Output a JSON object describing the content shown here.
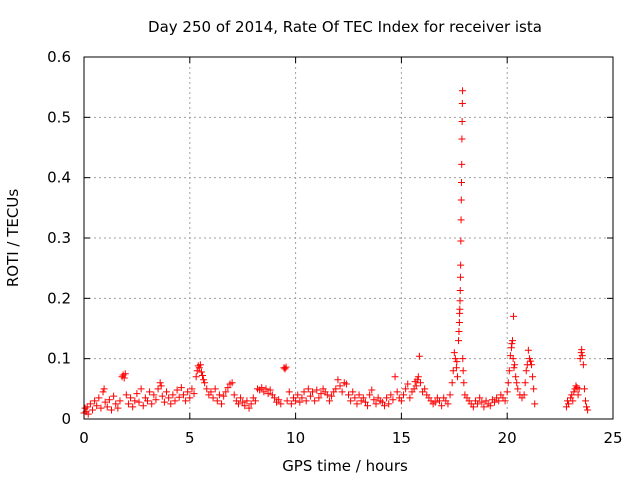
{
  "chart_data": {
    "type": "scatter",
    "title": "Day 250 of 2014, Rate Of TEC Index for receiver ista",
    "xlabel": "GPS time / hours",
    "ylabel": "ROTI / TECUs",
    "xlim": [
      0,
      25
    ],
    "ylim": [
      0,
      0.6
    ],
    "xticks": [
      0,
      5,
      10,
      15,
      20,
      25
    ],
    "yticks": [
      0,
      0.1,
      0.2,
      0.3,
      0.4,
      0.5,
      0.6
    ],
    "xtick_labels": [
      "0",
      "5",
      "10",
      "15",
      "20",
      "25"
    ],
    "ytick_labels": [
      "0",
      "0.1",
      "0.2",
      "0.3",
      "0.4",
      "0.5",
      "0.6"
    ],
    "grid": true,
    "marker": "+",
    "color": "#ff0000",
    "series": [
      {
        "name": "ROTI",
        "points": [
          [
            0.0,
            0.01
          ],
          [
            0.05,
            0.018
          ],
          [
            0.1,
            0.012
          ],
          [
            0.15,
            0.02
          ],
          [
            0.2,
            0.008
          ],
          [
            0.3,
            0.025
          ],
          [
            0.4,
            0.015
          ],
          [
            0.5,
            0.03
          ],
          [
            0.6,
            0.022
          ],
          [
            0.7,
            0.035
          ],
          [
            0.8,
            0.018
          ],
          [
            0.9,
            0.045
          ],
          [
            0.95,
            0.05
          ],
          [
            1.0,
            0.028
          ],
          [
            1.1,
            0.02
          ],
          [
            1.2,
            0.032
          ],
          [
            1.3,
            0.015
          ],
          [
            1.4,
            0.038
          ],
          [
            1.5,
            0.025
          ],
          [
            1.6,
            0.018
          ],
          [
            1.7,
            0.03
          ],
          [
            1.8,
            0.07
          ],
          [
            1.85,
            0.073
          ],
          [
            1.9,
            0.068
          ],
          [
            1.95,
            0.075
          ],
          [
            2.0,
            0.04
          ],
          [
            2.1,
            0.025
          ],
          [
            2.2,
            0.035
          ],
          [
            2.3,
            0.02
          ],
          [
            2.4,
            0.03
          ],
          [
            2.5,
            0.042
          ],
          [
            2.6,
            0.028
          ],
          [
            2.7,
            0.05
          ],
          [
            2.8,
            0.022
          ],
          [
            2.9,
            0.035
          ],
          [
            3.0,
            0.03
          ],
          [
            3.1,
            0.045
          ],
          [
            3.2,
            0.025
          ],
          [
            3.3,
            0.04
          ],
          [
            3.4,
            0.032
          ],
          [
            3.5,
            0.05
          ],
          [
            3.6,
            0.06
          ],
          [
            3.65,
            0.055
          ],
          [
            3.7,
            0.038
          ],
          [
            3.8,
            0.028
          ],
          [
            3.9,
            0.045
          ],
          [
            4.0,
            0.035
          ],
          [
            4.1,
            0.025
          ],
          [
            4.2,
            0.04
          ],
          [
            4.3,
            0.03
          ],
          [
            4.4,
            0.048
          ],
          [
            4.5,
            0.036
          ],
          [
            4.6,
            0.052
          ],
          [
            4.7,
            0.04
          ],
          [
            4.8,
            0.03
          ],
          [
            4.9,
            0.045
          ],
          [
            5.0,
            0.035
          ],
          [
            5.1,
            0.05
          ],
          [
            5.2,
            0.042
          ],
          [
            5.3,
            0.07
          ],
          [
            5.35,
            0.08
          ],
          [
            5.4,
            0.088
          ],
          [
            5.45,
            0.085
          ],
          [
            5.5,
            0.09
          ],
          [
            5.55,
            0.078
          ],
          [
            5.6,
            0.072
          ],
          [
            5.65,
            0.065
          ],
          [
            5.7,
            0.06
          ],
          [
            5.8,
            0.05
          ],
          [
            5.9,
            0.04
          ],
          [
            6.0,
            0.045
          ],
          [
            6.1,
            0.035
          ],
          [
            6.2,
            0.05
          ],
          [
            6.3,
            0.03
          ],
          [
            6.4,
            0.04
          ],
          [
            6.5,
            0.025
          ],
          [
            6.6,
            0.038
          ],
          [
            6.7,
            0.045
          ],
          [
            6.8,
            0.052
          ],
          [
            6.9,
            0.058
          ],
          [
            7.0,
            0.06
          ],
          [
            7.1,
            0.04
          ],
          [
            7.2,
            0.03
          ],
          [
            7.3,
            0.025
          ],
          [
            7.4,
            0.035
          ],
          [
            7.5,
            0.028
          ],
          [
            7.6,
            0.022
          ],
          [
            7.7,
            0.03
          ],
          [
            7.8,
            0.018
          ],
          [
            7.9,
            0.025
          ],
          [
            8.0,
            0.035
          ],
          [
            8.1,
            0.03
          ],
          [
            8.2,
            0.05
          ],
          [
            8.3,
            0.048
          ],
          [
            8.4,
            0.052
          ],
          [
            8.5,
            0.045
          ],
          [
            8.6,
            0.05
          ],
          [
            8.7,
            0.042
          ],
          [
            8.8,
            0.048
          ],
          [
            8.9,
            0.04
          ],
          [
            9.0,
            0.035
          ],
          [
            9.1,
            0.028
          ],
          [
            9.2,
            0.032
          ],
          [
            9.3,
            0.025
          ],
          [
            9.45,
            0.085
          ],
          [
            9.5,
            0.083
          ],
          [
            9.55,
            0.086
          ],
          [
            9.6,
            0.03
          ],
          [
            9.7,
            0.045
          ],
          [
            9.8,
            0.025
          ],
          [
            9.9,
            0.035
          ],
          [
            10.0,
            0.03
          ],
          [
            10.1,
            0.04
          ],
          [
            10.2,
            0.028
          ],
          [
            10.3,
            0.035
          ],
          [
            10.4,
            0.045
          ],
          [
            10.5,
            0.03
          ],
          [
            10.6,
            0.05
          ],
          [
            10.7,
            0.038
          ],
          [
            10.8,
            0.045
          ],
          [
            10.9,
            0.03
          ],
          [
            11.0,
            0.048
          ],
          [
            11.1,
            0.035
          ],
          [
            11.2,
            0.042
          ],
          [
            11.3,
            0.05
          ],
          [
            11.4,
            0.045
          ],
          [
            11.5,
            0.04
          ],
          [
            11.6,
            0.03
          ],
          [
            11.7,
            0.038
          ],
          [
            11.8,
            0.045
          ],
          [
            11.9,
            0.05
          ],
          [
            12.0,
            0.065
          ],
          [
            12.1,
            0.055
          ],
          [
            12.2,
            0.045
          ],
          [
            12.3,
            0.06
          ],
          [
            12.4,
            0.058
          ],
          [
            12.5,
            0.04
          ],
          [
            12.6,
            0.03
          ],
          [
            12.7,
            0.045
          ],
          [
            12.8,
            0.035
          ],
          [
            12.9,
            0.025
          ],
          [
            13.0,
            0.04
          ],
          [
            13.1,
            0.03
          ],
          [
            13.2,
            0.035
          ],
          [
            13.3,
            0.028
          ],
          [
            13.4,
            0.022
          ],
          [
            13.5,
            0.04
          ],
          [
            13.6,
            0.048
          ],
          [
            13.7,
            0.032
          ],
          [
            13.8,
            0.025
          ],
          [
            13.9,
            0.035
          ],
          [
            14.0,
            0.03
          ],
          [
            14.1,
            0.028
          ],
          [
            14.2,
            0.022
          ],
          [
            14.3,
            0.035
          ],
          [
            14.4,
            0.025
          ],
          [
            14.5,
            0.04
          ],
          [
            14.6,
            0.032
          ],
          [
            14.7,
            0.07
          ],
          [
            14.8,
            0.045
          ],
          [
            14.9,
            0.035
          ],
          [
            15.0,
            0.03
          ],
          [
            15.1,
            0.04
          ],
          [
            15.2,
            0.05
          ],
          [
            15.3,
            0.058
          ],
          [
            15.4,
            0.035
          ],
          [
            15.5,
            0.045
          ],
          [
            15.6,
            0.05
          ],
          [
            15.65,
            0.062
          ],
          [
            15.7,
            0.055
          ],
          [
            15.75,
            0.065
          ],
          [
            15.8,
            0.07
          ],
          [
            15.85,
            0.104
          ],
          [
            15.9,
            0.06
          ],
          [
            16.0,
            0.045
          ],
          [
            16.1,
            0.05
          ],
          [
            16.2,
            0.04
          ],
          [
            16.3,
            0.035
          ],
          [
            16.4,
            0.03
          ],
          [
            16.5,
            0.025
          ],
          [
            16.6,
            0.028
          ],
          [
            16.7,
            0.035
          ],
          [
            16.8,
            0.03
          ],
          [
            16.9,
            0.022
          ],
          [
            17.0,
            0.035
          ],
          [
            17.1,
            0.03
          ],
          [
            17.2,
            0.025
          ],
          [
            17.3,
            0.04
          ],
          [
            17.4,
            0.06
          ],
          [
            17.45,
            0.08
          ],
          [
            17.5,
            0.11
          ],
          [
            17.55,
            0.1
          ],
          [
            17.6,
            0.085
          ],
          [
            17.62,
            0.095
          ],
          [
            17.65,
            0.07
          ],
          [
            17.7,
            0.13
          ],
          [
            17.72,
            0.145
          ],
          [
            17.74,
            0.16
          ],
          [
            17.75,
            0.175
          ],
          [
            17.76,
            0.182
          ],
          [
            17.77,
            0.196
          ],
          [
            17.78,
            0.213
          ],
          [
            17.79,
            0.235
          ],
          [
            17.8,
            0.255
          ],
          [
            17.81,
            0.295
          ],
          [
            17.82,
            0.33
          ],
          [
            17.83,
            0.363
          ],
          [
            17.84,
            0.392
          ],
          [
            17.85,
            0.422
          ],
          [
            17.86,
            0.464
          ],
          [
            17.87,
            0.493
          ],
          [
            17.88,
            0.523
          ],
          [
            17.89,
            0.544
          ],
          [
            17.9,
            0.1
          ],
          [
            17.92,
            0.08
          ],
          [
            17.95,
            0.06
          ],
          [
            18.0,
            0.04
          ],
          [
            18.1,
            0.035
          ],
          [
            18.2,
            0.03
          ],
          [
            18.3,
            0.025
          ],
          [
            18.4,
            0.02
          ],
          [
            18.5,
            0.03
          ],
          [
            18.6,
            0.025
          ],
          [
            18.7,
            0.035
          ],
          [
            18.8,
            0.028
          ],
          [
            18.9,
            0.02
          ],
          [
            19.0,
            0.03
          ],
          [
            19.1,
            0.025
          ],
          [
            19.2,
            0.022
          ],
          [
            19.3,
            0.032
          ],
          [
            19.4,
            0.028
          ],
          [
            19.5,
            0.035
          ],
          [
            19.6,
            0.03
          ],
          [
            19.7,
            0.04
          ],
          [
            19.8,
            0.035
          ],
          [
            19.9,
            0.03
          ],
          [
            20.0,
            0.045
          ],
          [
            20.05,
            0.06
          ],
          [
            20.1,
            0.08
          ],
          [
            20.15,
            0.105
          ],
          [
            20.2,
            0.118
          ],
          [
            20.22,
            0.125
          ],
          [
            20.25,
            0.13
          ],
          [
            20.28,
            0.1
          ],
          [
            20.3,
            0.17
          ],
          [
            20.32,
            0.085
          ],
          [
            20.35,
            0.09
          ],
          [
            20.4,
            0.07
          ],
          [
            20.45,
            0.06
          ],
          [
            20.5,
            0.05
          ],
          [
            20.6,
            0.04
          ],
          [
            20.7,
            0.035
          ],
          [
            20.8,
            0.04
          ],
          [
            20.85,
            0.06
          ],
          [
            20.9,
            0.08
          ],
          [
            20.95,
            0.09
          ],
          [
            21.0,
            0.114
          ],
          [
            21.05,
            0.1
          ],
          [
            21.1,
            0.096
          ],
          [
            21.15,
            0.09
          ],
          [
            21.2,
            0.07
          ],
          [
            21.25,
            0.05
          ],
          [
            21.3,
            0.025
          ],
          [
            22.8,
            0.02
          ],
          [
            22.85,
            0.03
          ],
          [
            22.9,
            0.025
          ],
          [
            23.0,
            0.035
          ],
          [
            23.05,
            0.04
          ],
          [
            23.1,
            0.03
          ],
          [
            23.15,
            0.045
          ],
          [
            23.2,
            0.05
          ],
          [
            23.25,
            0.055
          ],
          [
            23.3,
            0.052
          ],
          [
            23.35,
            0.04
          ],
          [
            23.4,
            0.05
          ],
          [
            23.45,
            0.1
          ],
          [
            23.5,
            0.11
          ],
          [
            23.52,
            0.115
          ],
          [
            23.55,
            0.105
          ],
          [
            23.6,
            0.09
          ],
          [
            23.65,
            0.05
          ],
          [
            23.7,
            0.03
          ],
          [
            23.75,
            0.02
          ],
          [
            23.8,
            0.015
          ]
        ]
      }
    ]
  }
}
